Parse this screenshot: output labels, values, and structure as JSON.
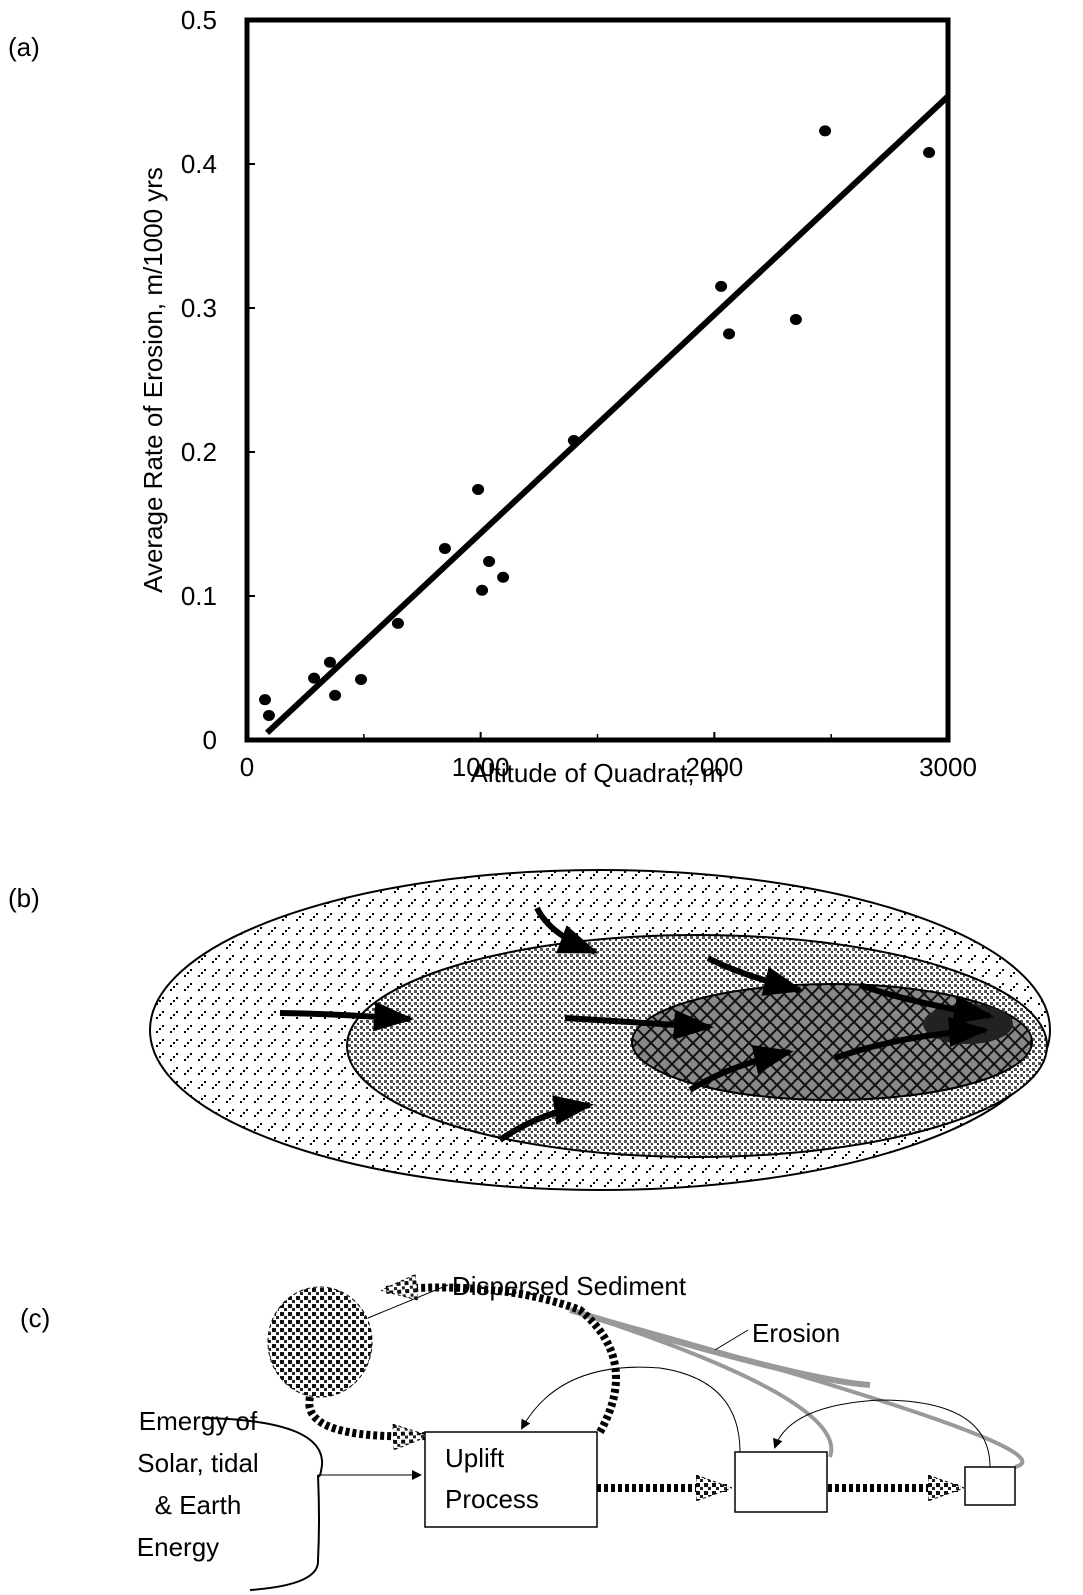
{
  "chart_data": {
    "type": "scatter",
    "panel_label": "(a)",
    "xlabel": "Altitude of Quadrat, m",
    "ylabel": "Average Rate of Erosion,  m/1000 yrs",
    "x": [
      77,
      94,
      287,
      355,
      377,
      488,
      646,
      847,
      989,
      1006,
      1036,
      1096,
      1399,
      2029,
      2063,
      2349,
      2474,
      2919
    ],
    "values": [
      0.028,
      0.017,
      0.043,
      0.054,
      0.031,
      0.042,
      0.081,
      0.133,
      0.174,
      0.104,
      0.124,
      0.113,
      0.208,
      0.315,
      0.282,
      0.292,
      0.423,
      0.408
    ],
    "color": "#000000",
    "trendline": {
      "x": [
        86,
        3000
      ],
      "y": [
        0.005,
        0.447
      ]
    },
    "xlim": [
      0,
      3000
    ],
    "ylim": [
      0,
      0.5
    ],
    "xticks": [
      0,
      1000,
      2000,
      3000
    ],
    "xminorticks": [
      500,
      1500,
      2500
    ],
    "yticks": [
      0,
      0.1,
      0.2,
      0.3,
      0.4,
      0.5
    ]
  },
  "panel_b": {
    "label": "(b)"
  },
  "panel_c": {
    "label": "(c)",
    "dispersed": "Dispersed   Sediment",
    "erosion": "Erosion",
    "source": [
      "Emergy of",
      "Solar, tidal",
      "& Earth",
      "Energy"
    ],
    "uplift": [
      "Uplift",
      "Process"
    ]
  }
}
